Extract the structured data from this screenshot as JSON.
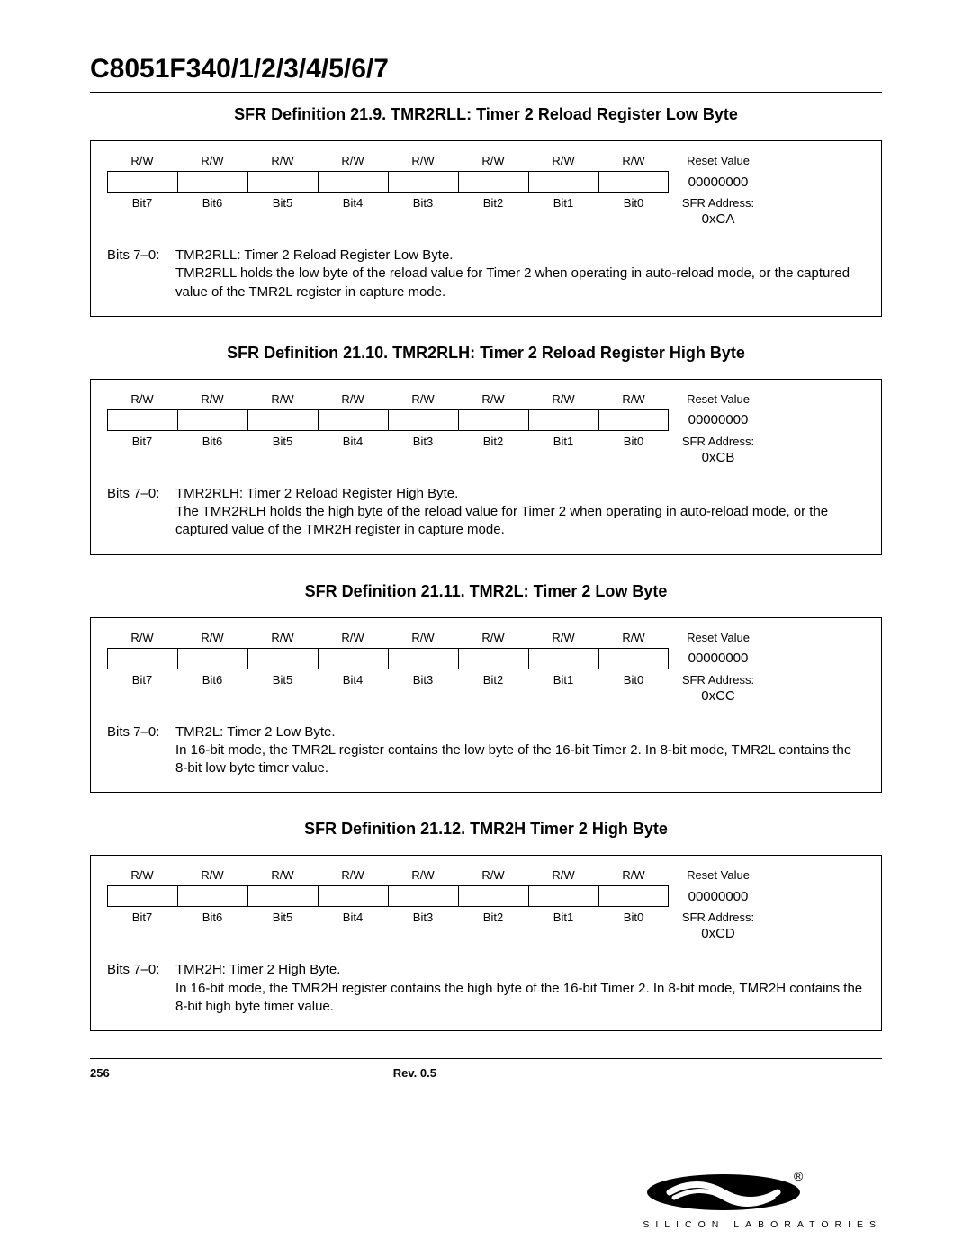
{
  "doc_title": "C8051F340/1/2/3/4/5/6/7",
  "rw_label": "R/W",
  "reset_value_label": "Reset Value",
  "sfr_address_label": "SFR Address:",
  "bit_labels": [
    "Bit7",
    "Bit6",
    "Bit5",
    "Bit4",
    "Bit3",
    "Bit2",
    "Bit1",
    "Bit0"
  ],
  "sections": [
    {
      "title": "SFR Definition 21.9. TMR2RLL: Timer 2 Reload Register Low Byte",
      "reset_value": "00000000",
      "sfr_address": "0xCA",
      "bits_range": "Bits 7–0:",
      "desc_heading": "TMR2RLL: Timer 2 Reload Register Low Byte.",
      "desc_body": "TMR2RLL holds the low byte of the reload value for Timer 2 when operating in auto-reload mode, or the captured value of the TMR2L register in capture mode."
    },
    {
      "title": "SFR Definition 21.10. TMR2RLH: Timer 2 Reload Register High Byte",
      "reset_value": "00000000",
      "sfr_address": "0xCB",
      "bits_range": "Bits 7–0:",
      "desc_heading": "TMR2RLH: Timer 2 Reload Register High Byte.",
      "desc_body": "The TMR2RLH holds the high byte of the reload value for Timer 2 when operating in auto-reload mode, or the captured value of the TMR2H register in capture mode."
    },
    {
      "title": "SFR Definition 21.11. TMR2L: Timer 2 Low Byte",
      "reset_value": "00000000",
      "sfr_address": "0xCC",
      "bits_range": "Bits 7–0:",
      "desc_heading": "TMR2L: Timer 2 Low Byte.",
      "desc_body": "In 16-bit mode, the TMR2L register contains the low byte of the 16-bit Timer 2. In 8-bit mode, TMR2L contains the 8-bit low byte timer value."
    },
    {
      "title": "SFR Definition 21.12. TMR2H Timer 2 High Byte",
      "reset_value": "00000000",
      "sfr_address": "0xCD",
      "bits_range": "Bits 7–0:",
      "desc_heading": "TMR2H: Timer 2 High Byte.",
      "desc_body": "In 16-bit mode, the TMR2H register contains the high byte of the 16-bit Timer 2. In 8-bit mode, TMR2H contains the 8-bit high byte timer value."
    }
  ],
  "footer": {
    "page_number": "256",
    "rev": "Rev. 0.5",
    "logo_text": "SILICON LABORATORIES"
  }
}
